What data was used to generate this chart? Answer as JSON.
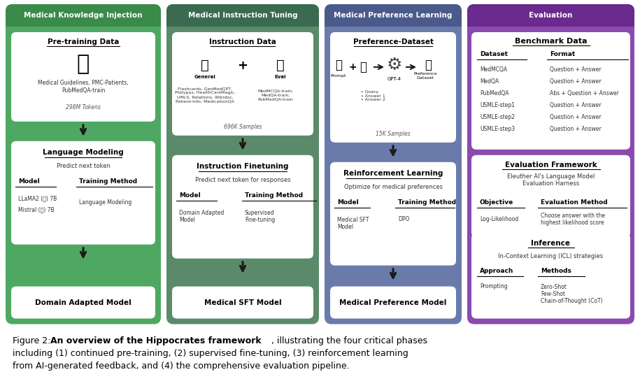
{
  "bg_color": "#ffffff",
  "fig_w": 9.15,
  "fig_h": 5.42,
  "green_bg": "#4fa862",
  "green_header": "#3a8a4a",
  "teal_bg": "#5a8a6a",
  "teal_header": "#3a6a50",
  "blue_bg": "#6a7aaa",
  "blue_header": "#4a5a8a",
  "purple_bg": "#8a4aae",
  "purple_header": "#6a2a8e",
  "white_box": "#ffffff",
  "caption_bold": "An overview of the Hippocrates framework",
  "caption_line2": "including (1) continued pre-training, (2) supervised fine-tuning, (3) reinforcement learning",
  "caption_line3": "from AI-generated feedback, and (4) the comprehensive evaluation pipeline.",
  "datasets": [
    "MedMCQA",
    "MedQA",
    "PubMedQA",
    "USMLE-step1",
    "USMLE-step2",
    "USMLE-step3"
  ],
  "formats": [
    "Question + Answer",
    "Question + Answer",
    "Abs + Question + Answer",
    "Question + Answer",
    "Question + Answer",
    "Question + Answer"
  ]
}
